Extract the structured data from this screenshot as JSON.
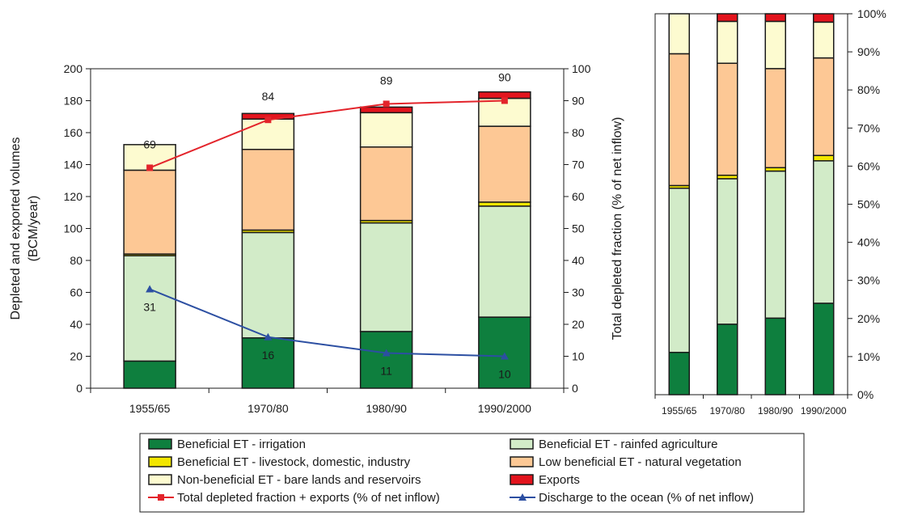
{
  "chart_data": [
    {
      "type": "bar",
      "stacked": true,
      "categories": [
        "1955/65",
        "1970/80",
        "1980/90",
        "1990/2000"
      ],
      "ylabel": "Depleted and exported volumes",
      "ylabel_unit": "(BCM/year)",
      "ylim": [
        0,
        200
      ],
      "yticks": [
        "0",
        "20",
        "40",
        "60",
        "80",
        "100",
        "120",
        "140",
        "160",
        "180",
        "200"
      ],
      "y2label": "Total depleted fraction (% of net inflow)",
      "y2lim": [
        0,
        100
      ],
      "y2ticks": [
        "0",
        "10",
        "20",
        "30",
        "40",
        "50",
        "60",
        "70",
        "80",
        "90",
        "100"
      ],
      "series": [
        {
          "name": "Beneficial ET - irrigation",
          "color": "#0e7f3e",
          "values": [
            17,
            31.5,
            35.5,
            44.5
          ]
        },
        {
          "name": "Beneficial ET - rainfed agriculture",
          "color": "#d2ebc8",
          "values": [
            66,
            66,
            68,
            69.5
          ]
        },
        {
          "name": "Beneficial ET - livestock, domestic, industry",
          "color": "#f2e600",
          "values": [
            1,
            1.5,
            1.5,
            2.5
          ]
        },
        {
          "name": "Low beneficial ET - natural vegetation",
          "color": "#fdc895",
          "values": [
            52.5,
            50.5,
            46,
            47.5
          ]
        },
        {
          "name": "Non-beneficial ET - bare lands and reservoirs",
          "color": "#fdfbd0",
          "values": [
            16,
            19,
            21.5,
            17.5
          ]
        },
        {
          "name": "Exports",
          "color": "#e3141d",
          "values": [
            0,
            3.5,
            3.5,
            4
          ]
        }
      ],
      "lines": [
        {
          "name": "Total depleted fraction + exports (% of net inflow)",
          "color": "#e3242b",
          "marker": "square",
          "axis": "right",
          "values": [
            69,
            84,
            89,
            90
          ],
          "labels": [
            "69",
            "84",
            "89",
            "90"
          ]
        },
        {
          "name": "Discharge to the ocean (% of net inflow)",
          "color": "#2c4fa2",
          "marker": "triangle",
          "axis": "right",
          "values": [
            31,
            16,
            11,
            10
          ],
          "labels": [
            "31",
            "16",
            "11",
            "10"
          ]
        }
      ]
    },
    {
      "type": "bar",
      "stacked": true,
      "normalized": true,
      "categories": [
        "1955/65",
        "1970/80",
        "1980/90",
        "1990/2000"
      ],
      "ylim": [
        0,
        100
      ],
      "yticks": [
        "0%",
        "10%",
        "20%",
        "30%",
        "40%",
        "50%",
        "60%",
        "70%",
        "80%",
        "90%",
        "100%"
      ],
      "series": [
        {
          "name": "Beneficial ET - irrigation",
          "color": "#0e7f3e",
          "values": [
            11.1,
            18.5,
            20.1,
            24
          ]
        },
        {
          "name": "Beneficial ET - rainfed agriculture",
          "color": "#d2ebc8",
          "values": [
            43.1,
            38.2,
            38.6,
            37.4
          ]
        },
        {
          "name": "Beneficial ET - livestock, domestic, industry",
          "color": "#f2e600",
          "values": [
            0.7,
            0.9,
            0.9,
            1.4
          ]
        },
        {
          "name": "Low beneficial ET - natural vegetation",
          "color": "#fdc895",
          "values": [
            34.6,
            29.4,
            26,
            25.6
          ]
        },
        {
          "name": "Non-beneficial ET - bare lands and reservoirs",
          "color": "#fdfbd0",
          "values": [
            10.5,
            11,
            12.4,
            9.4
          ]
        },
        {
          "name": "Exports",
          "color": "#e3141d",
          "values": [
            0,
            2,
            2,
            2.2
          ]
        }
      ]
    }
  ],
  "legend": {
    "items": [
      {
        "label": "Beneficial ET - irrigation",
        "kind": "box",
        "color": "#0e7f3e"
      },
      {
        "label": "Beneficial ET - rainfed agriculture",
        "kind": "box",
        "color": "#d2ebc8"
      },
      {
        "label": "Beneficial ET - livestock, domestic, industry",
        "kind": "box",
        "color": "#f2e600"
      },
      {
        "label": "Low beneficial ET - natural vegetation",
        "kind": "box",
        "color": "#fdc895"
      },
      {
        "label": "Non-beneficial ET - bare lands and reservoirs",
        "kind": "box",
        "color": "#fdfbd0"
      },
      {
        "label": "Exports",
        "kind": "box",
        "color": "#e3141d"
      },
      {
        "label": "Total depleted fraction + exports (% of net inflow)",
        "kind": "line-square",
        "color": "#e3242b"
      },
      {
        "label": "Discharge to the ocean (% of net inflow)",
        "kind": "line-triangle",
        "color": "#2c4fa2"
      }
    ]
  }
}
